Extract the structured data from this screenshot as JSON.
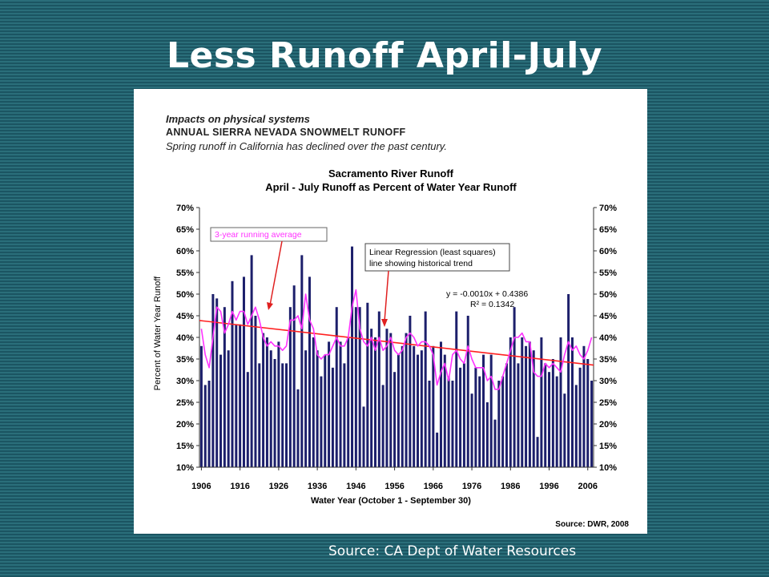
{
  "slide": {
    "title": "Less Runoff April-July",
    "source_caption": "Source: CA Dept of Water Resources"
  },
  "panel_header": {
    "line1": "Impacts on physical systems",
    "line2": "ANNUAL SIERRA NEVADA SNOWMELT RUNOFF",
    "line3": "Spring runoff in California has declined over the past century."
  },
  "colors": {
    "background": "#1f5f6b",
    "bars": "#1c1f6b",
    "running_average": "#ff33ff",
    "trend_line": "#ff2020",
    "arrow": "#e02020"
  },
  "chart_data": {
    "type": "bar",
    "title": "Sacramento River Runoff",
    "subtitle": "April - July Runoff as Percent of Water Year Runoff",
    "xlabel": "Water Year   (October 1 - September 30)",
    "ylabel": "Percent of Water Year Runoff",
    "source": "Source:  DWR, 2008",
    "x": [
      1906,
      1907,
      1908,
      1909,
      1910,
      1911,
      1912,
      1913,
      1914,
      1915,
      1916,
      1917,
      1918,
      1919,
      1920,
      1921,
      1922,
      1923,
      1924,
      1925,
      1926,
      1927,
      1928,
      1929,
      1930,
      1931,
      1932,
      1933,
      1934,
      1935,
      1936,
      1937,
      1938,
      1939,
      1940,
      1941,
      1942,
      1943,
      1944,
      1945,
      1946,
      1947,
      1948,
      1949,
      1950,
      1951,
      1952,
      1953,
      1954,
      1955,
      1956,
      1957,
      1958,
      1959,
      1960,
      1961,
      1962,
      1963,
      1964,
      1965,
      1966,
      1967,
      1968,
      1969,
      1970,
      1971,
      1972,
      1973,
      1974,
      1975,
      1976,
      1977,
      1978,
      1979,
      1980,
      1981,
      1982,
      1983,
      1984,
      1985,
      1986,
      1987,
      1988,
      1989,
      1990,
      1991,
      1992,
      1993,
      1994,
      1995,
      1996,
      1997,
      1998,
      1999,
      2000,
      2001,
      2002,
      2003,
      2004,
      2005,
      2006,
      2007
    ],
    "series": [
      {
        "name": "",
        "kind": "bar",
        "values": [
          38,
          29,
          30,
          50,
          49,
          36,
          47,
          37,
          53,
          43,
          43,
          54,
          32,
          59,
          45,
          34,
          41,
          40,
          37,
          35,
          39,
          34,
          34,
          47,
          52,
          28,
          59,
          37,
          54,
          40,
          37,
          31,
          36,
          39,
          33,
          47,
          39,
          34,
          40,
          61,
          47,
          47,
          24,
          48,
          42,
          40,
          46,
          29,
          42,
          41,
          32,
          36,
          38,
          41,
          45,
          38,
          36,
          37,
          46,
          30,
          38,
          18,
          39,
          36,
          31,
          30,
          46,
          33,
          34,
          45,
          27,
          33,
          31,
          36,
          25,
          36,
          21,
          30,
          31,
          34,
          40,
          47,
          34,
          40,
          38,
          39,
          37,
          17,
          40,
          34,
          32,
          35,
          31,
          40,
          27,
          50,
          40,
          29,
          33,
          38,
          35,
          30
        ]
      },
      {
        "name": "3-year running average",
        "kind": "line",
        "values": [
          42,
          36,
          33,
          40,
          47,
          46,
          41,
          43,
          46,
          44,
          46,
          46,
          43,
          45,
          47,
          44,
          40,
          38,
          39,
          38,
          38,
          37,
          38,
          44,
          44,
          45,
          42,
          50,
          44,
          42,
          36,
          35,
          36,
          36,
          38,
          40,
          38,
          38,
          40,
          47,
          51,
          42,
          39,
          38,
          40,
          37,
          40,
          37,
          38,
          40,
          37,
          36,
          37,
          40,
          41,
          40,
          38,
          39,
          39,
          38,
          36,
          29,
          32,
          34,
          30,
          36,
          37,
          35,
          34,
          38,
          35,
          33,
          33,
          33,
          30,
          31,
          28,
          28,
          31,
          34,
          37,
          40,
          40,
          41,
          39,
          39,
          32,
          31,
          31,
          34,
          33,
          34,
          33,
          32,
          36,
          39,
          37,
          38,
          36,
          35,
          37,
          40
        ]
      }
    ],
    "trend_line": {
      "label": "Linear Regression (least squares) line showing historical trend",
      "equation": "y = -0.0010x + 0.4386",
      "r_squared": "R² = 0.1342",
      "start_value": 43.9,
      "end_value": 33.6
    },
    "annotations": [
      {
        "text": "3-year running average"
      },
      {
        "text": "Linear Regression (least squares) line showing historical trend"
      }
    ],
    "ylim": [
      10,
      70
    ],
    "y_ticks": [
      "10%",
      "15%",
      "20%",
      "25%",
      "30%",
      "35%",
      "40%",
      "45%",
      "50%",
      "55%",
      "60%",
      "65%",
      "70%"
    ],
    "x_ticks": [
      "1906",
      "1916",
      "1926",
      "1936",
      "1946",
      "1956",
      "1966",
      "1976",
      "1986",
      "1996",
      "2006"
    ],
    "grid": false,
    "legend": "none"
  }
}
